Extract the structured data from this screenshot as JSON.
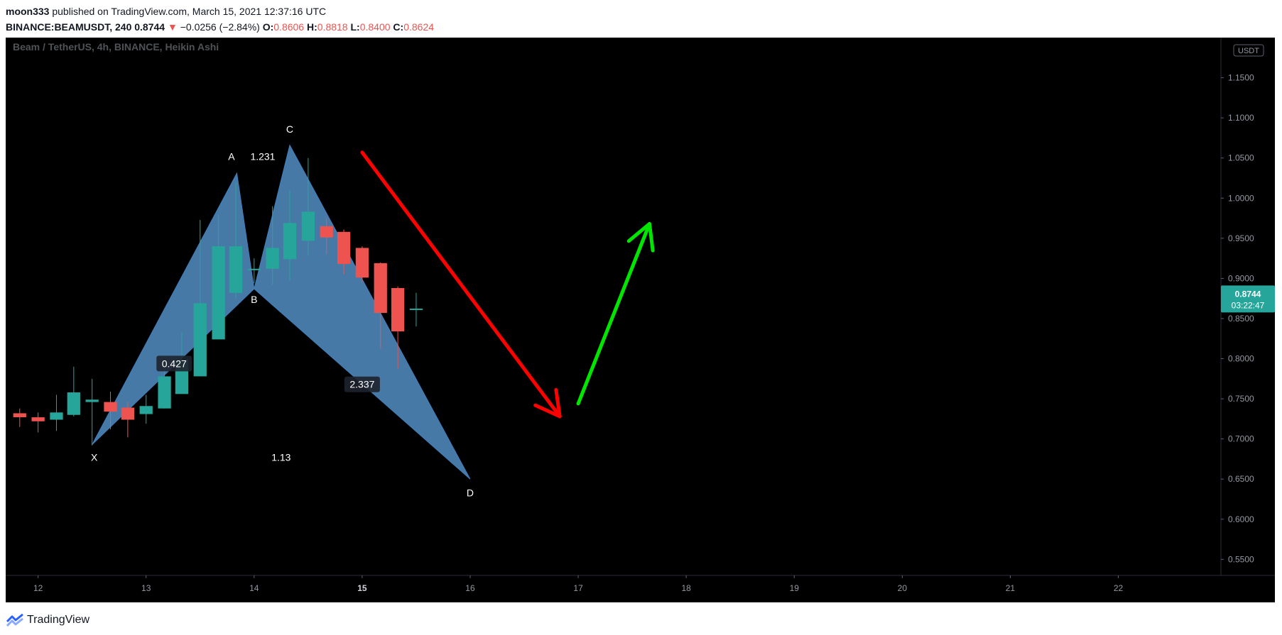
{
  "header": {
    "author": "moon333",
    "published_text": "published on TradingView.com, March 15, 2021 12:37:16 UTC",
    "symbol": "BINANCE:BEAMUSDT, 240",
    "last": "0.8744",
    "change_arrow": "▼",
    "change": "−0.0256 (−2.84%)",
    "o_label": "O:",
    "o": "0.8606",
    "h_label": "H:",
    "h": "0.8818",
    "l_label": "L:",
    "l": "0.8400",
    "c_label": "C:",
    "c": "0.8624"
  },
  "footer": {
    "brand": "TradingView"
  },
  "chart_data": {
    "type": "candlestick",
    "title": "Beam / TetherUS, 4h, BINANCE, Heikin Ashi",
    "currency": "USDT",
    "ylim": [
      0.53,
      1.2
    ],
    "y_ticks": [
      "1.1500",
      "1.1000",
      "1.0500",
      "1.0000",
      "0.9500",
      "0.9000",
      "0.8500",
      "0.8000",
      "0.7500",
      "0.7000",
      "0.6500",
      "0.6000",
      "0.5500"
    ],
    "x_ticks": [
      {
        "label": "12",
        "x": 12
      },
      {
        "label": "13",
        "x": 13
      },
      {
        "label": "14",
        "x": 14
      },
      {
        "label": "15",
        "x": 15,
        "bold": true
      },
      {
        "label": "16",
        "x": 16
      },
      {
        "label": "17",
        "x": 17
      },
      {
        "label": "18",
        "x": 18
      },
      {
        "label": "19",
        "x": 19
      },
      {
        "label": "20",
        "x": 20
      },
      {
        "label": "21",
        "x": 21
      },
      {
        "label": "22",
        "x": 22
      }
    ],
    "xlim": [
      11.7,
      22.95
    ],
    "price_tag": {
      "value": 0.8744,
      "label": "0.8744",
      "countdown": "03:22:47",
      "color": "#26a69a"
    },
    "colors": {
      "up": "#26a69a",
      "down": "#ef5350",
      "pattern": "#5b9bd5",
      "red_arrow": "#ff0000",
      "green_arrow": "#00e600"
    },
    "candles": [
      {
        "x": 11.83,
        "o": 0.732,
        "h": 0.738,
        "l": 0.715,
        "c": 0.727
      },
      {
        "x": 12.0,
        "o": 0.727,
        "h": 0.733,
        "l": 0.708,
        "c": 0.722
      },
      {
        "x": 12.17,
        "o": 0.724,
        "h": 0.755,
        "l": 0.71,
        "c": 0.733
      },
      {
        "x": 12.33,
        "o": 0.73,
        "h": 0.79,
        "l": 0.728,
        "c": 0.758
      },
      {
        "x": 12.5,
        "o": 0.746,
        "h": 0.775,
        "l": 0.692,
        "c": 0.749
      },
      {
        "x": 12.67,
        "o": 0.746,
        "h": 0.759,
        "l": 0.712,
        "c": 0.734
      },
      {
        "x": 12.83,
        "o": 0.739,
        "h": 0.746,
        "l": 0.702,
        "c": 0.724
      },
      {
        "x": 13.0,
        "o": 0.731,
        "h": 0.755,
        "l": 0.719,
        "c": 0.741
      },
      {
        "x": 13.17,
        "o": 0.738,
        "h": 0.795,
        "l": 0.738,
        "c": 0.778
      },
      {
        "x": 13.33,
        "o": 0.756,
        "h": 0.833,
        "l": 0.756,
        "c": 0.799
      },
      {
        "x": 13.5,
        "o": 0.778,
        "h": 0.973,
        "l": 0.778,
        "c": 0.869
      },
      {
        "x": 13.67,
        "o": 0.824,
        "h": 0.98,
        "l": 0.824,
        "c": 0.94
      },
      {
        "x": 13.83,
        "o": 0.882,
        "h": 1.02,
        "l": 0.875,
        "c": 0.94
      },
      {
        "x": 14.0,
        "o": 0.911,
        "h": 0.925,
        "l": 0.894,
        "c": 0.912
      },
      {
        "x": 14.17,
        "o": 0.912,
        "h": 0.99,
        "l": 0.892,
        "c": 0.938
      },
      {
        "x": 14.33,
        "o": 0.924,
        "h": 1.01,
        "l": 0.897,
        "c": 0.969
      },
      {
        "x": 14.5,
        "o": 0.947,
        "h": 1.05,
        "l": 0.929,
        "c": 0.983
      },
      {
        "x": 14.67,
        "o": 0.965,
        "h": 0.975,
        "l": 0.93,
        "c": 0.951
      },
      {
        "x": 14.83,
        "o": 0.958,
        "h": 0.961,
        "l": 0.905,
        "c": 0.918
      },
      {
        "x": 15.0,
        "o": 0.938,
        "h": 0.94,
        "l": 0.895,
        "c": 0.901
      },
      {
        "x": 15.17,
        "o": 0.919,
        "h": 0.92,
        "l": 0.812,
        "c": 0.857
      },
      {
        "x": 15.33,
        "o": 0.888,
        "h": 0.89,
        "l": 0.788,
        "c": 0.834
      },
      {
        "x": 15.5,
        "o": 0.861,
        "h": 0.882,
        "l": 0.84,
        "c": 0.8624
      }
    ],
    "pattern": {
      "points": {
        "X": {
          "x": 12.5,
          "y": 0.693
        },
        "A": {
          "x": 13.84,
          "y": 1.031
        },
        "B": {
          "x": 14.0,
          "y": 0.887
        },
        "C": {
          "x": 14.33,
          "y": 1.066
        },
        "D": {
          "x": 16.0,
          "y": 0.65
        }
      },
      "point_labels": [
        {
          "text": "A",
          "x": 13.79,
          "y": 1.052
        },
        {
          "text": "C",
          "x": 14.33,
          "y": 1.086
        },
        {
          "text": "B",
          "x": 14.0,
          "y": 0.874
        },
        {
          "text": "X",
          "x": 12.52,
          "y": 0.677
        },
        {
          "text": "D",
          "x": 16.0,
          "y": 0.633
        }
      ],
      "ratios": [
        {
          "text": "1.231",
          "x": 14.08,
          "y": 1.052,
          "boxed": false
        },
        {
          "text": "0.427",
          "x": 13.26,
          "y": 0.794,
          "boxed": true
        },
        {
          "text": "2.337",
          "x": 15.0,
          "y": 0.768,
          "boxed": true
        },
        {
          "text": "1.13",
          "x": 14.25,
          "y": 0.677,
          "boxed": false
        }
      ]
    },
    "drawings": [
      {
        "name": "red-down-arrow",
        "color": "#ff0000",
        "from": {
          "x": 15.0,
          "y": 1.057
        },
        "to": {
          "x": 16.83,
          "y": 0.728
        }
      },
      {
        "name": "green-up-arrow",
        "color": "#00e600",
        "from": {
          "x": 17.0,
          "y": 0.744
        },
        "to": {
          "x": 17.66,
          "y": 0.968
        }
      }
    ]
  }
}
